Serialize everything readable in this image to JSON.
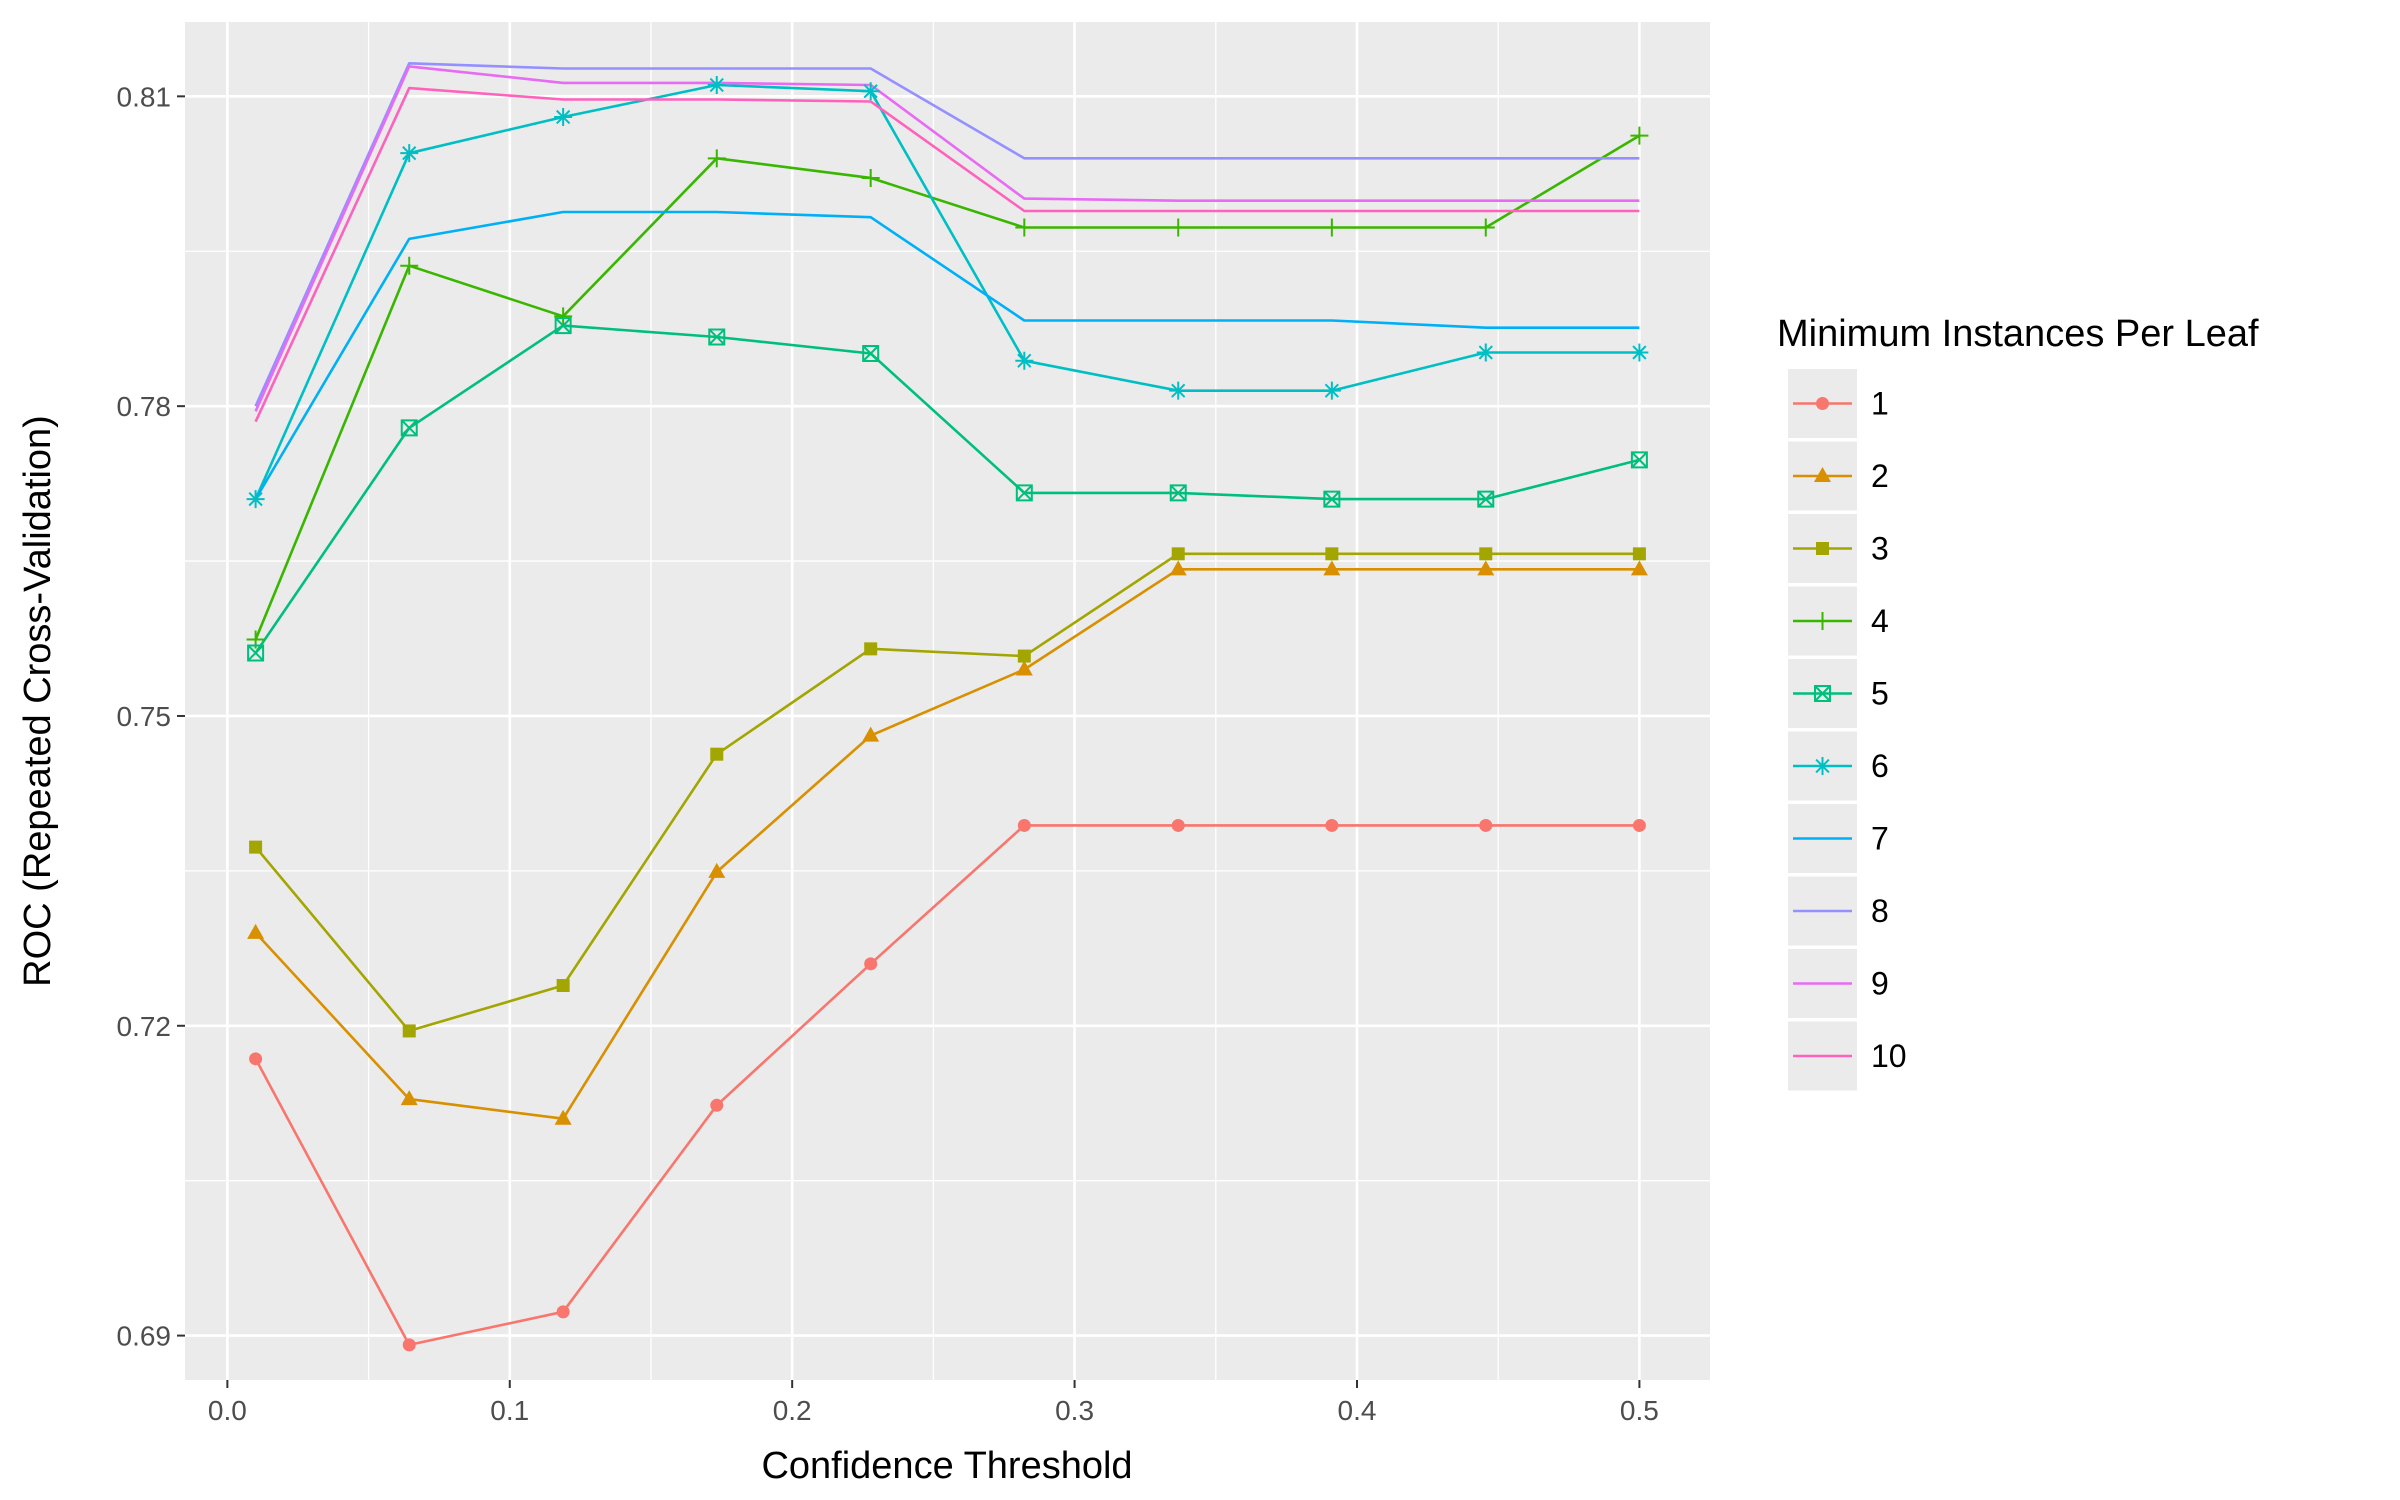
{
  "chart_data": {
    "type": "line",
    "xlabel": "Confidence Threshold",
    "ylabel": "ROC (Repeated Cross-Validation)",
    "xlim": [
      -0.015,
      0.525
    ],
    "ylim": [
      0.6857,
      0.8172
    ],
    "x_ticks": [
      0.0,
      0.1,
      0.2,
      0.3,
      0.4,
      0.5
    ],
    "x_tick_labels": [
      "0.0",
      "0.1",
      "0.2",
      "0.3",
      "0.4",
      "0.5"
    ],
    "y_ticks": [
      0.69,
      0.72,
      0.75,
      0.78,
      0.81
    ],
    "y_tick_labels": [
      "0.69",
      "0.72",
      "0.75",
      "0.78",
      "0.81"
    ],
    "grid": true,
    "legend": {
      "title": "Minimum Instances Per Leaf",
      "position": "right"
    },
    "x": [
      0.01,
      0.0644,
      0.1189,
      0.1733,
      0.2278,
      0.2822,
      0.3367,
      0.3911,
      0.4456,
      0.5
    ],
    "series": [
      {
        "name": "1",
        "color": "#F8766D",
        "marker": "circle",
        "values": [
          0.7168,
          0.6891,
          0.6923,
          0.7123,
          0.726,
          0.7394,
          0.7394,
          0.7394,
          0.7394,
          0.7394
        ]
      },
      {
        "name": "2",
        "color": "#D89000",
        "marker": "triangle",
        "values": [
          0.729,
          0.7129,
          0.711,
          0.7349,
          0.7481,
          0.7545,
          0.7642,
          0.7642,
          0.7642,
          0.7642
        ]
      },
      {
        "name": "3",
        "color": "#A3A500",
        "marker": "square",
        "values": [
          0.7373,
          0.7195,
          0.7239,
          0.7463,
          0.7565,
          0.7558,
          0.7657,
          0.7657,
          0.7657,
          0.7657
        ]
      },
      {
        "name": "4",
        "color": "#39B600",
        "marker": "plus",
        "values": [
          0.7574,
          0.7936,
          0.7887,
          0.804,
          0.8021,
          0.7973,
          0.7973,
          0.7973,
          0.7973,
          0.8062
        ]
      },
      {
        "name": "5",
        "color": "#00BF7D",
        "marker": "square-x",
        "values": [
          0.7561,
          0.7779,
          0.7878,
          0.7867,
          0.7851,
          0.7716,
          0.7716,
          0.771,
          0.771,
          0.7748
        ]
      },
      {
        "name": "6",
        "color": "#00BFC4",
        "marker": "asterisk",
        "values": [
          0.771,
          0.8045,
          0.808,
          0.8111,
          0.8105,
          0.7844,
          0.7815,
          0.7815,
          0.7852,
          0.7852
        ]
      },
      {
        "name": "7",
        "color": "#00B0F6",
        "marker": "none",
        "values": [
          0.771,
          0.7962,
          0.7988,
          0.7988,
          0.7983,
          0.7883,
          0.7883,
          0.7883,
          0.7876,
          0.7876
        ]
      },
      {
        "name": "8",
        "color": "#9590FF",
        "marker": "none",
        "values": [
          0.78,
          0.8132,
          0.8127,
          0.8127,
          0.8127,
          0.804,
          0.804,
          0.804,
          0.804,
          0.804
        ]
      },
      {
        "name": "9",
        "color": "#E76BF3",
        "marker": "none",
        "values": [
          0.7795,
          0.8129,
          0.8113,
          0.8113,
          0.8111,
          0.8001,
          0.7999,
          0.7999,
          0.7999,
          0.7999
        ]
      },
      {
        "name": "10",
        "color": "#FF62BC",
        "marker": "none",
        "values": [
          0.7785,
          0.8108,
          0.8097,
          0.8097,
          0.8095,
          0.7989,
          0.7989,
          0.7989,
          0.7989,
          0.7989
        ]
      }
    ]
  }
}
